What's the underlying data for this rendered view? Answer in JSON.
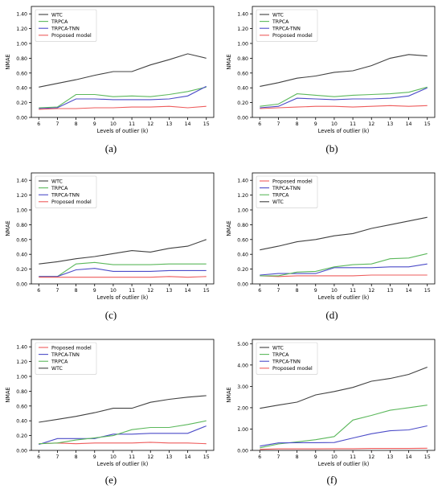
{
  "colors": {
    "WTC": "#404040",
    "TRPCA": "#5cb85c",
    "TRPCA-TNN": "#4c4cc8",
    "Proposed model": "#ee5c5c"
  },
  "chart_data": [
    {
      "id": "a",
      "label": "(a)",
      "type": "line",
      "xlabel": "Levels of outlier (k)",
      "ylabel": "NMAE",
      "x": [
        6,
        7,
        8,
        9,
        10,
        11,
        12,
        13,
        14,
        15
      ],
      "xlim": [
        5.6,
        15.4
      ],
      "ylim": [
        0,
        1.5
      ],
      "yticks": [
        "0.00",
        "0.20",
        "0.40",
        "0.60",
        "0.80",
        "1.00",
        "1.20",
        "1.40"
      ],
      "ytick_values": [
        0,
        0.2,
        0.4,
        0.6,
        0.8,
        1.0,
        1.2,
        1.4
      ],
      "legend_position": "top-left",
      "series": [
        {
          "name": "WTC",
          "values": [
            0.41,
            0.46,
            0.51,
            0.57,
            0.62,
            0.62,
            0.71,
            0.78,
            0.86,
            0.8
          ]
        },
        {
          "name": "TRPCA",
          "values": [
            0.13,
            0.14,
            0.31,
            0.31,
            0.28,
            0.29,
            0.28,
            0.31,
            0.35,
            0.41
          ]
        },
        {
          "name": "TRPCA-TNN",
          "values": [
            0.12,
            0.13,
            0.25,
            0.25,
            0.24,
            0.24,
            0.24,
            0.25,
            0.29,
            0.42
          ]
        },
        {
          "name": "Proposed model",
          "values": [
            0.11,
            0.12,
            0.12,
            0.13,
            0.13,
            0.14,
            0.14,
            0.15,
            0.13,
            0.15
          ]
        }
      ]
    },
    {
      "id": "b",
      "label": "(b)",
      "type": "line",
      "xlabel": "Levels of outlier (k)",
      "ylabel": "NMAE",
      "x": [
        6,
        7,
        8,
        9,
        10,
        11,
        12,
        13,
        14,
        15
      ],
      "xlim": [
        5.6,
        15.4
      ],
      "ylim": [
        0,
        1.5
      ],
      "yticks": [
        "0.00",
        "0.20",
        "0.40",
        "0.60",
        "0.80",
        "1.00",
        "1.20",
        "1.40"
      ],
      "ytick_values": [
        0,
        0.2,
        0.4,
        0.6,
        0.8,
        1.0,
        1.2,
        1.4
      ],
      "legend_position": "top-left",
      "series": [
        {
          "name": "WTC",
          "values": [
            0.42,
            0.47,
            0.53,
            0.56,
            0.61,
            0.63,
            0.7,
            0.8,
            0.85,
            0.83
          ]
        },
        {
          "name": "TRPCA",
          "values": [
            0.15,
            0.18,
            0.32,
            0.3,
            0.28,
            0.3,
            0.31,
            0.32,
            0.34,
            0.41
          ]
        },
        {
          "name": "TRPCA-TNN",
          "values": [
            0.13,
            0.15,
            0.26,
            0.25,
            0.24,
            0.25,
            0.25,
            0.26,
            0.29,
            0.4
          ]
        },
        {
          "name": "Proposed model",
          "values": [
            0.12,
            0.13,
            0.14,
            0.15,
            0.15,
            0.14,
            0.15,
            0.16,
            0.15,
            0.16
          ]
        }
      ]
    },
    {
      "id": "c",
      "label": "(c)",
      "type": "line",
      "xlabel": "Levels of outlier (k)",
      "ylabel": "NMAE",
      "x": [
        6,
        7,
        8,
        9,
        10,
        11,
        12,
        13,
        14,
        15
      ],
      "xlim": [
        5.6,
        15.4
      ],
      "ylim": [
        0,
        1.5
      ],
      "yticks": [
        "0.00",
        "0.20",
        "0.40",
        "0.60",
        "0.80",
        "1.00",
        "1.20",
        "1.40"
      ],
      "ytick_values": [
        0,
        0.2,
        0.4,
        0.6,
        0.8,
        1.0,
        1.2,
        1.4
      ],
      "legend_position": "top-left",
      "series": [
        {
          "name": "WTC",
          "values": [
            0.27,
            0.3,
            0.34,
            0.37,
            0.41,
            0.45,
            0.43,
            0.48,
            0.51,
            0.6
          ]
        },
        {
          "name": "TRPCA",
          "values": [
            0.1,
            0.1,
            0.27,
            0.29,
            0.26,
            0.26,
            0.26,
            0.27,
            0.27,
            0.27
          ]
        },
        {
          "name": "TRPCA-TNN",
          "values": [
            0.1,
            0.1,
            0.19,
            0.21,
            0.17,
            0.17,
            0.17,
            0.18,
            0.18,
            0.18
          ]
        },
        {
          "name": "Proposed model",
          "values": [
            0.09,
            0.09,
            0.09,
            0.09,
            0.09,
            0.09,
            0.09,
            0.1,
            0.09,
            0.1
          ]
        }
      ]
    },
    {
      "id": "d",
      "label": "(d)",
      "type": "line",
      "xlabel": "Levels of outlier (k)",
      "ylabel": "NMAE",
      "x": [
        6,
        7,
        8,
        9,
        10,
        11,
        12,
        13,
        14,
        15
      ],
      "xlim": [
        5.6,
        15.4
      ],
      "ylim": [
        0,
        1.5
      ],
      "yticks": [
        "0.00",
        "0.20",
        "0.40",
        "0.60",
        "0.80",
        "1.00",
        "1.20",
        "1.40"
      ],
      "ytick_values": [
        0,
        0.2,
        0.4,
        0.6,
        0.8,
        1.0,
        1.2,
        1.4
      ],
      "legend_position": "top-left",
      "series": [
        {
          "name": "Proposed model",
          "values": [
            0.11,
            0.1,
            0.11,
            0.11,
            0.11,
            0.11,
            0.12,
            0.12,
            0.12,
            0.12
          ]
        },
        {
          "name": "TRPCA-TNN",
          "values": [
            0.12,
            0.14,
            0.14,
            0.14,
            0.22,
            0.22,
            0.22,
            0.23,
            0.23,
            0.27
          ]
        },
        {
          "name": "TRPCA",
          "values": [
            0.11,
            0.11,
            0.16,
            0.17,
            0.23,
            0.26,
            0.27,
            0.34,
            0.35,
            0.41
          ]
        },
        {
          "name": "WTC",
          "values": [
            0.46,
            0.51,
            0.57,
            0.6,
            0.65,
            0.68,
            0.75,
            0.8,
            0.85,
            0.9
          ]
        }
      ]
    },
    {
      "id": "e",
      "label": "(e)",
      "type": "line",
      "xlabel": "Levels of outlier (k)",
      "ylabel": "NMAE",
      "x": [
        6,
        7,
        8,
        9,
        10,
        11,
        12,
        13,
        14,
        15
      ],
      "xlim": [
        5.6,
        15.4
      ],
      "ylim": [
        0,
        1.5
      ],
      "yticks": [
        "0.00",
        "0.20",
        "0.40",
        "0.60",
        "0.80",
        "1.00",
        "1.20",
        "1.40"
      ],
      "ytick_values": [
        0,
        0.2,
        0.4,
        0.6,
        0.8,
        1.0,
        1.2,
        1.4
      ],
      "legend_position": "top-left",
      "series": [
        {
          "name": "Proposed model",
          "values": [
            0.09,
            0.1,
            0.09,
            0.1,
            0.1,
            0.1,
            0.11,
            0.1,
            0.1,
            0.09
          ]
        },
        {
          "name": "TRPCA-TNN",
          "values": [
            0.08,
            0.16,
            0.16,
            0.16,
            0.22,
            0.22,
            0.23,
            0.23,
            0.23,
            0.33
          ]
        },
        {
          "name": "TRPCA",
          "values": [
            0.09,
            0.1,
            0.14,
            0.17,
            0.2,
            0.28,
            0.31,
            0.31,
            0.35,
            0.4
          ]
        },
        {
          "name": "WTC",
          "values": [
            0.38,
            0.42,
            0.46,
            0.51,
            0.57,
            0.57,
            0.65,
            0.69,
            0.72,
            0.74
          ]
        }
      ]
    },
    {
      "id": "f",
      "label": "(f)",
      "type": "line",
      "xlabel": "Levels of outlier (k)",
      "ylabel": "NMAE",
      "x": [
        6,
        7,
        8,
        9,
        10,
        11,
        12,
        13,
        14,
        15
      ],
      "xlim": [
        5.6,
        15.4
      ],
      "ylim": [
        0,
        5.2
      ],
      "yticks": [
        "0.00",
        "1.00",
        "2.00",
        "3.00",
        "4.00",
        "5.00"
      ],
      "ytick_values": [
        0,
        1,
        2,
        3,
        4,
        5
      ],
      "legend_position": "top-left",
      "series": [
        {
          "name": "WTC",
          "values": [
            1.97,
            2.12,
            2.26,
            2.6,
            2.76,
            2.95,
            3.24,
            3.37,
            3.56,
            3.9
          ]
        },
        {
          "name": "TRPCA",
          "values": [
            0.12,
            0.3,
            0.4,
            0.5,
            0.65,
            1.42,
            1.64,
            1.88,
            2.0,
            2.12
          ]
        },
        {
          "name": "TRPCA-TNN",
          "values": [
            0.2,
            0.35,
            0.36,
            0.36,
            0.37,
            0.58,
            0.78,
            0.92,
            0.96,
            1.15
          ]
        },
        {
          "name": "Proposed model",
          "values": [
            0.05,
            0.07,
            0.07,
            0.07,
            0.08,
            0.08,
            0.09,
            0.09,
            0.09,
            0.1
          ]
        }
      ]
    }
  ]
}
